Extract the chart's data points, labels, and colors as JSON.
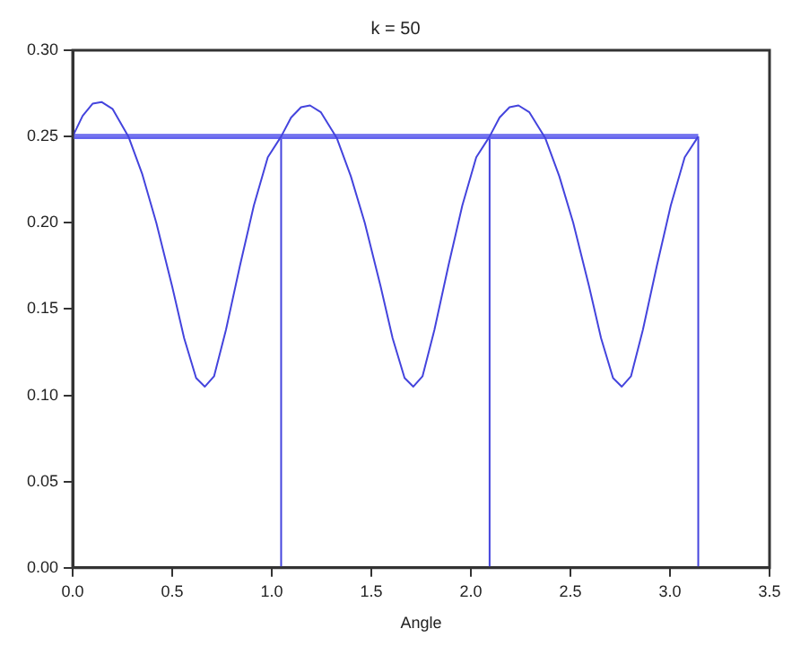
{
  "chart_data": {
    "type": "line",
    "title": "k = 50",
    "xlabel": "Angle",
    "xlim": [
      0,
      3.5
    ],
    "xticks": [
      {
        "value": 0,
        "label": "0.0"
      },
      {
        "value": 0.5,
        "label": "0.5"
      },
      {
        "value": 1,
        "label": "1.0"
      },
      {
        "value": 1.5,
        "label": "1.5"
      },
      {
        "value": 2,
        "label": "2.0"
      },
      {
        "value": 2.5,
        "label": "2.5"
      },
      {
        "value": 3,
        "label": "3.0"
      },
      {
        "value": 3.5,
        "label": "3.5"
      }
    ],
    "ylim": [
      0,
      0.3
    ],
    "yticks": [
      {
        "value": 0,
        "label": "0.00"
      },
      {
        "value": 0.05,
        "label": "0.05"
      },
      {
        "value": 0.1,
        "label": "0.10"
      },
      {
        "value": 0.15,
        "label": "0.15"
      },
      {
        "value": 0.2,
        "label": "0.20"
      },
      {
        "value": 0.25,
        "label": "0.25"
      },
      {
        "value": 0.3,
        "label": "0.30"
      }
    ],
    "grid": false,
    "legend": false,
    "marker": "none",
    "line_style": "solid",
    "series": [
      {
        "color": "#4444dd",
        "x": [
          0,
          0.05,
          0.1,
          0.145,
          0.2,
          0.28,
          0.35,
          0.42,
          0.5,
          0.56,
          0.62,
          0.664,
          0.71,
          0.77,
          0.84,
          0.91,
          0.98,
          1.047,
          1.097,
          1.147,
          1.192,
          1.247,
          1.327,
          1.397,
          1.467,
          1.547,
          1.607,
          1.667,
          1.711,
          1.757,
          1.817,
          1.887,
          1.957,
          2.027,
          2.094,
          2.144,
          2.194,
          2.239,
          2.294,
          2.374,
          2.444,
          2.514,
          2.594,
          2.654,
          2.714,
          2.758,
          2.804,
          2.864,
          2.934,
          3.004,
          3.074,
          3.142
        ],
        "values": [
          0.25,
          0.262,
          0.269,
          0.27,
          0.266,
          0.25,
          0.228,
          0.2,
          0.163,
          0.133,
          0.11,
          0.105,
          0.111,
          0.138,
          0.175,
          0.21,
          0.238,
          0.25,
          0.261,
          0.267,
          0.268,
          0.264,
          0.249,
          0.227,
          0.2,
          0.163,
          0.133,
          0.11,
          0.105,
          0.111,
          0.138,
          0.175,
          0.21,
          0.238,
          0.25,
          0.261,
          0.267,
          0.268,
          0.264,
          0.249,
          0.227,
          0.2,
          0.163,
          0.133,
          0.11,
          0.105,
          0.111,
          0.138,
          0.175,
          0.21,
          0.238,
          0.25
        ]
      },
      {
        "color": "#6666ee",
        "x": [
          0,
          3.142
        ],
        "values": [
          0.249,
          0.249
        ]
      },
      {
        "color": "#6666ee",
        "x": [
          0,
          3.142
        ],
        "values": [
          0.25,
          0.25
        ]
      },
      {
        "color": "#6666ee",
        "x": [
          0,
          3.142
        ],
        "values": [
          0.251,
          0.251
        ]
      },
      {
        "color": "#4444dd",
        "x": [
          1.047,
          1.047
        ],
        "values": [
          0,
          0.25
        ]
      },
      {
        "color": "#4444dd",
        "x": [
          2.094,
          2.094
        ],
        "values": [
          0,
          0.25
        ]
      },
      {
        "color": "#4444dd",
        "x": [
          3.142,
          3.142
        ],
        "values": [
          0,
          0.25
        ]
      }
    ]
  }
}
